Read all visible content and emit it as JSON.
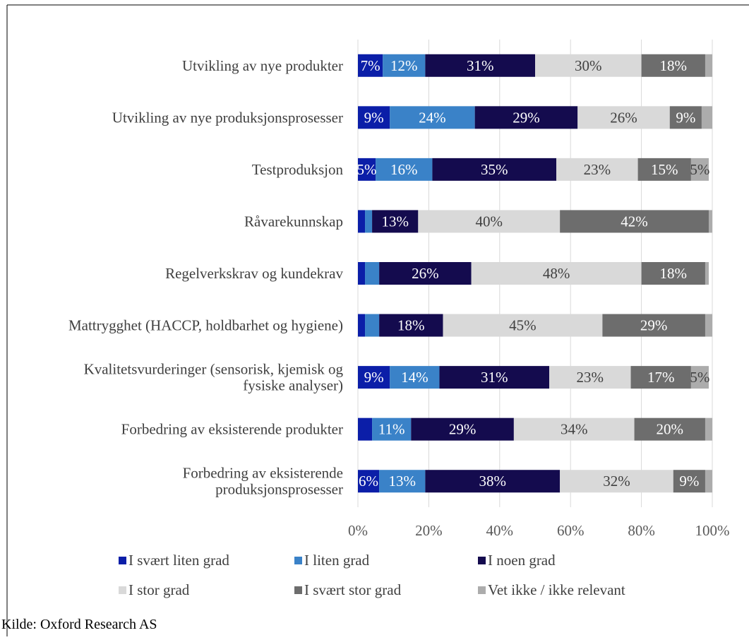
{
  "chart_data": {
    "type": "bar",
    "orientation": "horizontal",
    "stacked": true,
    "percent_scale": true,
    "categories": [
      "Utvikling av nye produkter",
      "Utvikling av nye produksjonsprosesser",
      "Testproduksjon",
      "Råvarekunnskap",
      "Regelverkskrav og kundekrav",
      "Mattrygghet (HACCP, holdbarhet og hygiene)",
      "Kvalitetsvurderinger (sensorisk, kjemisk og\nfysiske analyser)",
      "Forbedring av eksisterende produkter",
      "Forbedring av eksisterende\nproduksjonsprosesser"
    ],
    "series": [
      {
        "name": "I svært liten grad",
        "color": "#0b1ea8",
        "values": [
          7,
          9,
          5,
          2,
          2,
          2,
          9,
          4,
          6
        ],
        "labels": [
          "7%",
          "9%",
          "5%",
          "",
          "",
          "",
          "9%",
          "",
          "6%"
        ]
      },
      {
        "name": "I liten grad",
        "color": "#3a82c8",
        "values": [
          12,
          24,
          16,
          2,
          4,
          4,
          14,
          11,
          13
        ],
        "labels": [
          "12%",
          "24%",
          "16%",
          "",
          "",
          "",
          "14%",
          "11%",
          "13%"
        ]
      },
      {
        "name": "I noen grad",
        "color": "#140b4e",
        "values": [
          31,
          29,
          35,
          13,
          26,
          18,
          31,
          29,
          38
        ],
        "labels": [
          "31%",
          "29%",
          "35%",
          "13%",
          "26%",
          "18%",
          "31%",
          "29%",
          "38%"
        ]
      },
      {
        "name": "I stor grad",
        "color": "#d9d9d9",
        "values": [
          30,
          26,
          23,
          40,
          48,
          45,
          23,
          34,
          32
        ],
        "labels": [
          "30%",
          "26%",
          "23%",
          "40%",
          "48%",
          "45%",
          "23%",
          "34%",
          "32%"
        ]
      },
      {
        "name": "I svært stor grad",
        "color": "#6d6d6d",
        "values": [
          18,
          9,
          15,
          42,
          18,
          29,
          17,
          20,
          9
        ],
        "labels": [
          "18%",
          "9%",
          "15%",
          "42%",
          "18%",
          "29%",
          "17%",
          "20%",
          "9%"
        ]
      },
      {
        "name": "Vet ikke / ikke relevant",
        "color": "#acacac",
        "values": [
          2,
          3,
          5,
          1,
          1,
          2,
          5,
          2,
          2
        ],
        "labels": [
          "",
          "",
          "5%",
          "",
          "",
          "",
          "5%",
          "",
          ""
        ]
      }
    ],
    "xlim": [
      0,
      100
    ],
    "xticks": [
      "0%",
      "20%",
      "40%",
      "60%",
      "80%",
      "100%"
    ],
    "grid": true,
    "legend_position": "bottom",
    "title": "",
    "xlabel": "",
    "ylabel": ""
  },
  "source": "Kilde: Oxford Research AS"
}
